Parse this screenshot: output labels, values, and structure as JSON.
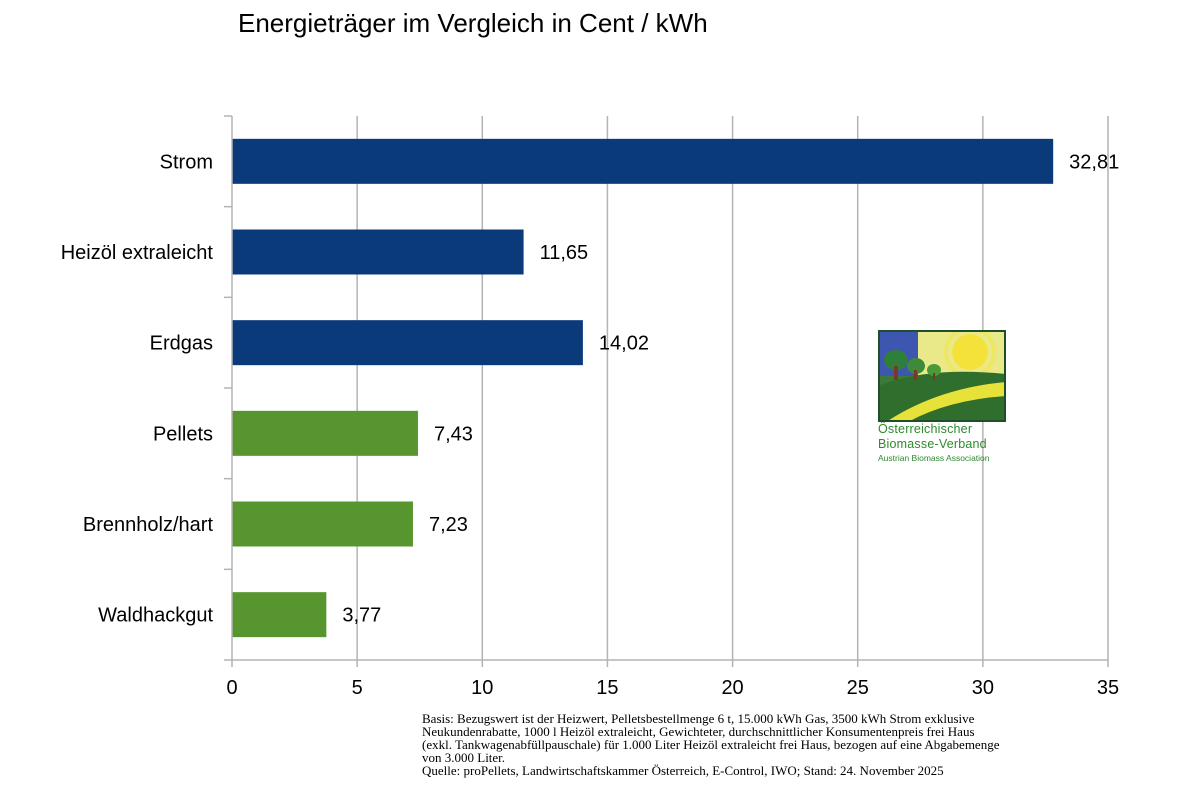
{
  "chart_data": {
    "type": "bar",
    "orientation": "horizontal",
    "title": "Energieträger im Vergleich in Cent / kWh",
    "categories": [
      "Strom",
      "Heizöl extraleicht",
      "Erdgas",
      "Pellets",
      "Brennholz/hart",
      "Waldhackgut"
    ],
    "values": [
      32.81,
      11.65,
      14.02,
      7.43,
      7.23,
      3.77
    ],
    "value_labels": [
      "32,81",
      "11,65",
      "14,02",
      "7,43",
      "7,23",
      "3,77"
    ],
    "bar_colors": [
      "#0b3a7a",
      "#0b3a7a",
      "#0b3a7a",
      "#57962e",
      "#57962e",
      "#57962e"
    ],
    "xlim": [
      0,
      35
    ],
    "xticks": [
      0,
      5,
      10,
      15,
      20,
      25,
      30,
      35
    ],
    "xlabel": "",
    "ylabel": "",
    "grid": "vertical",
    "legend": "none"
  },
  "footnote": {
    "lines": [
      "Basis: Bezugswert ist der Heizwert, Pelletsbestellmenge 6 t, 15.000 kWh Gas, 3500 kWh Strom exklusive",
      "Neukundenrabatte, 1000 l Heizöl extraleicht, Gewichteter, durchschnittlicher Konsumentenpreis frei Haus",
      "(exkl. Tankwagenabfüllpauschale) für 1.000 Liter Heizöl extraleicht frei Haus, bezogen auf eine Abgabemenge",
      "von 3.000 Liter.",
      "Quelle: proPellets, Landwirtschaftskammer Österreich, E-Control, IWO; Stand: 24. November 2025"
    ]
  },
  "logo": {
    "line1": "Österreichischer",
    "line2": "Biomasse-Verband",
    "line3": "Austrian Biomass Association"
  }
}
